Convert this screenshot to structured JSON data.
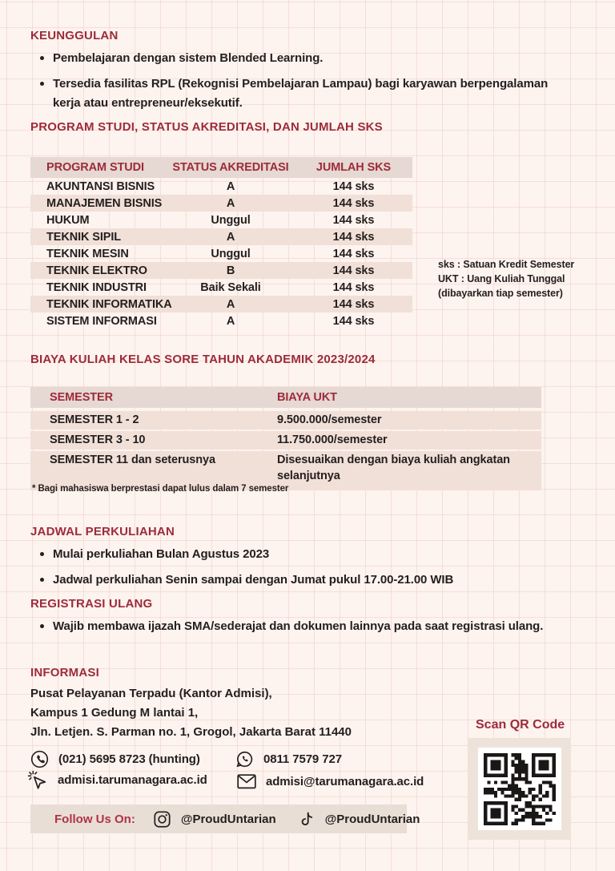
{
  "page": {
    "background": "#fdf3ef",
    "grid_line": "#f3ddd6"
  },
  "colors": {
    "accent": "#9d2b3a",
    "text": "#231f1f",
    "table_header_bg": "#e6d8d2",
    "stripe_bg": "#f1e0d8",
    "panel_bg": "#eee3da"
  },
  "sections": {
    "keunggulan": {
      "title": "KEUNGGULAN",
      "bullets": [
        "Pembelajaran dengan sistem Blended Learning.",
        "Tersedia fasilitas RPL (Rekognisi Pembelajaran Lampau) bagi karyawan berpengalaman kerja atau entrepreneur/eksekutif."
      ]
    },
    "program_studi": {
      "title": "PROGRAM STUDI, STATUS AKREDITASI, DAN JUMLAH SKS",
      "table": {
        "headers": [
          "PROGRAM STUDI",
          "STATUS AKREDITASI",
          "JUMLAH SKS"
        ],
        "rows": [
          {
            "program": "AKUNTANSI BISNIS",
            "akreditasi": "A",
            "sks": "144 sks"
          },
          {
            "program": "MANAJEMEN BISNIS",
            "akreditasi": "A",
            "sks": "144 sks"
          },
          {
            "program": "HUKUM",
            "akreditasi": "Unggul",
            "sks": "144 sks"
          },
          {
            "program": "TEKNIK SIPIL",
            "akreditasi": "A",
            "sks": "144 sks"
          },
          {
            "program": "TEKNIK MESIN",
            "akreditasi": "Unggul",
            "sks": "144 sks"
          },
          {
            "program": "TEKNIK ELEKTRO",
            "akreditasi": "B",
            "sks": "144 sks"
          },
          {
            "program": "TEKNIK INDUSTRI",
            "akreditasi": "Baik Sekali",
            "sks": "144 sks"
          },
          {
            "program": "TEKNIK INFORMATIKA",
            "akreditasi": "A",
            "sks": "144 sks"
          },
          {
            "program": "SISTEM INFORMASI",
            "akreditasi": "A",
            "sks": "144 sks"
          }
        ]
      },
      "note_lines": [
        "sks : Satuan Kredit Semester",
        "UKT : Uang Kuliah Tunggal",
        "(dibayarkan tiap semester)"
      ]
    },
    "biaya": {
      "title": "BIAYA KULIAH KELAS SORE TAHUN AKADEMIK 2023/2024",
      "table": {
        "headers": [
          "SEMESTER",
          "BIAYA UKT"
        ],
        "rows": [
          {
            "semester": "SEMESTER 1 - 2",
            "biaya": "9.500.000/semester"
          },
          {
            "semester": "SEMESTER 3 - 10",
            "biaya": "11.750.000/semester"
          },
          {
            "semester": "SEMESTER 11 dan seterusnya",
            "biaya": "Disesuaikan dengan biaya kuliah angkatan selanjutnya"
          }
        ]
      },
      "footnote": "* Bagi mahasiswa berprestasi dapat lulus dalam 7 semester"
    },
    "jadwal": {
      "title": "JADWAL PERKULIAHAN",
      "bullets": [
        "Mulai perkuliahan Bulan Agustus 2023",
        "Jadwal perkuliahan Senin sampai dengan Jumat pukul 17.00-21.00 WIB"
      ]
    },
    "registrasi": {
      "title": "REGISTRASI ULANG",
      "bullets": [
        "Wajib membawa ijazah SMA/sederajat dan dokumen lainnya pada saat registrasi ulang."
      ]
    },
    "informasi": {
      "title": "INFORMASI",
      "address_lines": [
        "Pusat Pelayanan Terpadu (Kantor Admisi),",
        "Kampus 1 Gedung M lantai 1,",
        "Jln. Letjen. S. Parman no. 1, Grogol, Jakarta Barat 11440"
      ],
      "contacts": [
        {
          "icon": "phone-icon",
          "value": "(021) 5695 8723 (hunting)"
        },
        {
          "icon": "whatsapp-icon",
          "value": "0811 7579 727"
        },
        {
          "icon": "cursor-icon",
          "value": "admisi.tarumanagara.ac.id"
        },
        {
          "icon": "email-icon",
          "value": "admisi@tarumanagara.ac.id"
        }
      ]
    },
    "social": {
      "label": "Follow Us On:",
      "instagram_handle": "@ProudUntarian",
      "tiktok_handle": "@ProudUntarian"
    },
    "qr": {
      "label": "Scan QR Code"
    }
  }
}
